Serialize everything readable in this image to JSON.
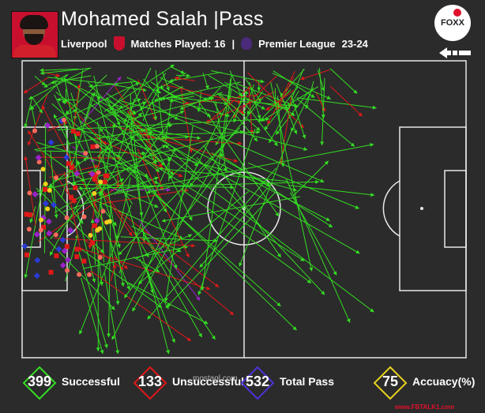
{
  "header": {
    "title": "Mohamed Salah |Pass",
    "team": "Liverpool",
    "matches": "Matches Played: 16",
    "separator": "|",
    "competition": "Premier League",
    "season": "23-24"
  },
  "logo": {
    "text": "FOXX"
  },
  "legend": [
    {
      "value": "399",
      "label": "Successful",
      "color": "#33dd22"
    },
    {
      "value": "133",
      "label": "Unsuccessful",
      "color": "#e01818"
    },
    {
      "value": "532",
      "label": "Total Pass",
      "color": "#4a32d8"
    },
    {
      "value": "75",
      "label": "Accuacy(%)",
      "color": "#e8d21e"
    }
  ],
  "watermark": "mostaql.com",
  "footer": {
    "url": "www.FBTALK1.com"
  },
  "colors": {
    "background": "#2b2b2b",
    "successful": "#33dd22",
    "unsuccessful": "#e01818",
    "key": "#9b22c9",
    "assist": "#f2d21e"
  }
}
